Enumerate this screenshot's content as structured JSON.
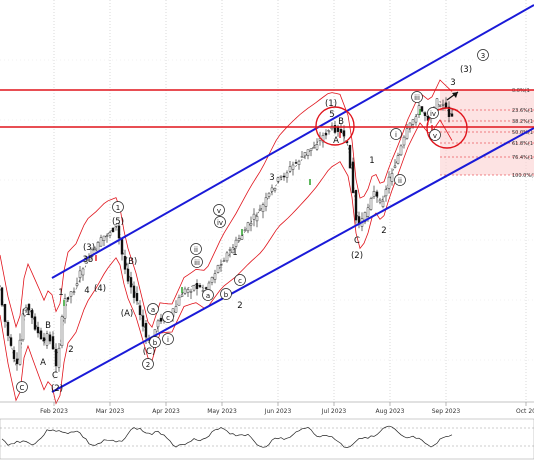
{
  "chart_data": [
    {
      "type": "line",
      "subtype": "candlestick-with-elliott-wave-annotations",
      "x_tick_labels": [
        "Feb 2023",
        "Mar 2023",
        "Apr 2023",
        "May 2023",
        "Jun 2023",
        "Jul 2023",
        "Aug 2023",
        "Sep 2023",
        "Oct 20"
      ],
      "fib_levels": [
        "0.0%(1",
        "23.6%(1",
        "38.2%(1",
        "50.0%(1",
        "61.8%(1",
        "76.4%(1",
        "100.0%(1"
      ],
      "wave_labels": [
        {
          "text": "C",
          "circled": true
        },
        {
          "text": "(1)",
          "circled": false
        },
        {
          "text": "A",
          "circled": false
        },
        {
          "text": "B",
          "circled": false
        },
        {
          "text": "C",
          "circled": false
        },
        {
          "text": "(2)",
          "circled": false
        },
        {
          "text": "1",
          "circled": false
        },
        {
          "text": "2",
          "circled": false
        },
        {
          "text": "(3)",
          "circled": false
        },
        {
          "text": "35",
          "circled": false
        },
        {
          "text": "4",
          "circled": false
        },
        {
          "text": "(4)",
          "circled": false
        },
        {
          "text": "1",
          "circled": true
        },
        {
          "text": "(5)",
          "circled": false
        },
        {
          "text": "(B)",
          "circled": false
        },
        {
          "text": "(A)",
          "circled": false
        },
        {
          "text": "a",
          "circled": true
        },
        {
          "text": "b",
          "circled": true
        },
        {
          "text": "(C)",
          "circled": false
        },
        {
          "text": "2",
          "circled": true
        },
        {
          "text": "c",
          "circled": true
        },
        {
          "text": "i",
          "circled": true
        },
        {
          "text": "ii",
          "circled": true
        },
        {
          "text": "iii",
          "circled": true
        },
        {
          "text": "a",
          "circled": true
        },
        {
          "text": "b",
          "circled": true
        },
        {
          "text": "iv",
          "circled": true
        },
        {
          "text": "v",
          "circled": true
        },
        {
          "text": "1",
          "circled": false
        },
        {
          "text": "c",
          "circled": true
        },
        {
          "text": "2",
          "circled": false
        },
        {
          "text": "3",
          "circled": false
        },
        {
          "text": "(1)",
          "circled": false
        },
        {
          "text": "5",
          "circled": false
        },
        {
          "text": "B",
          "circled": false
        },
        {
          "text": "A",
          "circled": false
        },
        {
          "text": "C",
          "circled": false
        },
        {
          "text": "(2)",
          "circled": false
        },
        {
          "text": "1",
          "circled": false
        },
        {
          "text": "2",
          "circled": false
        },
        {
          "text": "i",
          "circled": true
        },
        {
          "text": "ii",
          "circled": true
        },
        {
          "text": "iii",
          "circled": true
        },
        {
          "text": "iv",
          "circled": true
        },
        {
          "text": "v",
          "circled": true
        },
        {
          "text": "3",
          "circled": false
        },
        {
          "text": "(3)",
          "circled": false
        },
        {
          "text": "3",
          "circled": true
        }
      ],
      "colors": {
        "channel": "#1a1ad8",
        "resistance": "#e0141c",
        "bollinger": "#e0141c",
        "fib_zone": "#fbd0d0",
        "candle": "#111111",
        "up_marker": "#1a9a1a",
        "down_marker": "#e0141c"
      }
    },
    {
      "type": "line",
      "subtype": "oscillator-subpanel",
      "levels": [
        "upper",
        "lower"
      ]
    }
  ]
}
